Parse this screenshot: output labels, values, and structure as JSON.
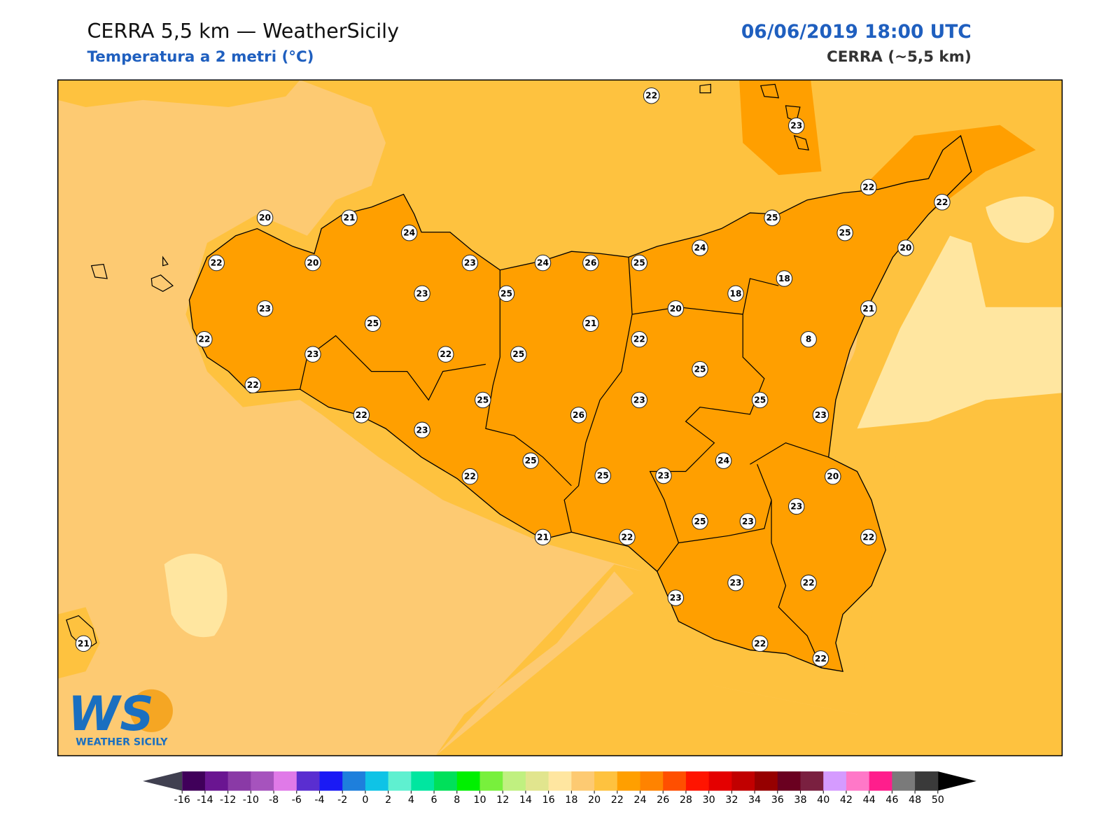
{
  "header": {
    "title": "CERRA 5,5 km — WeatherSicily",
    "subtitle": "Temperatura a 2 metri (°C)",
    "date": "06/06/2019 18:00 UTC",
    "model": "CERRA (~5,5 km)"
  },
  "logo": {
    "mark": "WS",
    "text": "WEATHER SICILY"
  },
  "stations": [
    22,
    23,
    22,
    22,
    25,
    25,
    20,
    20,
    21,
    24,
    22,
    20,
    23,
    24,
    26,
    25,
    24,
    18,
    18,
    20,
    21,
    23,
    23,
    25,
    21,
    25,
    22,
    23,
    22,
    25,
    22,
    8,
    25,
    22,
    25,
    23,
    25,
    23,
    22,
    23,
    26,
    24,
    25,
    25,
    23,
    22,
    20,
    23,
    25,
    23,
    22,
    21,
    22,
    23,
    22,
    23,
    21,
    22,
    22
  ],
  "colorbar": {
    "ticks": [
      -16,
      -14,
      -12,
      -10,
      -8,
      -6,
      -4,
      -2,
      0,
      2,
      4,
      6,
      8,
      10,
      12,
      14,
      16,
      18,
      20,
      22,
      24,
      26,
      28,
      30,
      32,
      34,
      36,
      38,
      40,
      42,
      44,
      46,
      48,
      50
    ],
    "colors": [
      "#40005a",
      "#6a1591",
      "#8a3aa6",
      "#a653bd",
      "#e07ae8",
      "#5a2ed0",
      "#1a1af5",
      "#1e7fdc",
      "#0fc3e6",
      "#5ff0d0",
      "#00e6a0",
      "#00e05a",
      "#00f000",
      "#78f03c",
      "#c0f080",
      "#e1e58e",
      "#ffe6a0",
      "#fdca72",
      "#fec23f",
      "#ff9f00",
      "#ff8300",
      "#ff4f00",
      "#ff1400",
      "#e40000",
      "#c10000",
      "#960000",
      "#6a0020",
      "#7a2040",
      "#d59bff",
      "#ff78c8",
      "#ff1e8c",
      "#7a7a7a",
      "#3a3a3a"
    ],
    "under_color": "#404050",
    "over_color": "#000000"
  }
}
